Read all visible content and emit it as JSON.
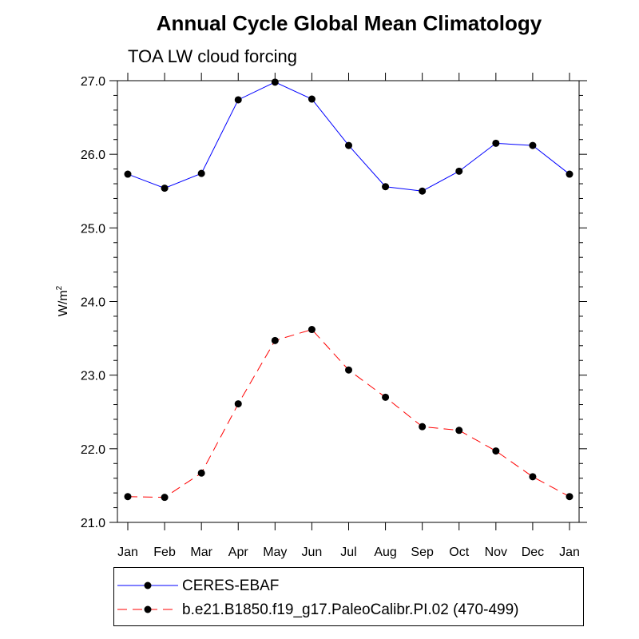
{
  "chart_data": {
    "type": "line",
    "title": "Annual Cycle Global Mean Climatology",
    "subtitle": "TOA LW cloud forcing",
    "ylabel": "W/m",
    "ylabel_superscript": "2",
    "xlabel": "",
    "categories": [
      "Jan",
      "Feb",
      "Mar",
      "Apr",
      "May",
      "Jun",
      "Jul",
      "Aug",
      "Sep",
      "Oct",
      "Nov",
      "Dec",
      "Jan"
    ],
    "ylim": [
      21.0,
      27.0
    ],
    "yticks": [
      "21.0",
      "22.0",
      "23.0",
      "24.0",
      "25.0",
      "26.0",
      "27.0"
    ],
    "series": [
      {
        "name": "CERES-EBAF",
        "color": "#0000ff",
        "dash": "solid",
        "marker": "filled-circle",
        "values": [
          25.73,
          25.54,
          25.74,
          26.74,
          26.98,
          26.75,
          26.12,
          25.56,
          25.5,
          25.77,
          26.15,
          26.12,
          25.73
        ]
      },
      {
        "name": "b.e21.B1850.f19_g17.PaleoCalibr.PI.02 (470-499)",
        "color": "#ff0000",
        "dash": "dashed",
        "marker": "filled-circle",
        "values": [
          21.35,
          21.34,
          21.67,
          22.61,
          23.47,
          23.62,
          23.07,
          22.7,
          22.3,
          22.25,
          21.97,
          21.62,
          21.35
        ]
      }
    ],
    "legend_position": "bottom",
    "grid": false
  }
}
